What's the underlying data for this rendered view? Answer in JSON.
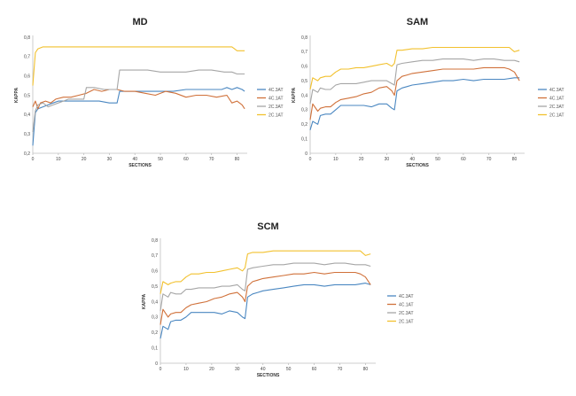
{
  "chart_data": [
    {
      "type": "line",
      "title": "MD",
      "xlabel": "SECTIONS",
      "ylabel": "KAPPA",
      "xlim": [
        0,
        84
      ],
      "ylim": [
        0.2,
        0.8
      ],
      "xticks": [
        0,
        10,
        20,
        30,
        40,
        50,
        60,
        70,
        80
      ],
      "yticks": [
        0.2,
        0.3,
        0.4,
        0.5,
        0.6,
        0.7,
        0.8
      ],
      "ytick_labels": [
        "0,2",
        "0,3",
        "0,4",
        "0,5",
        "0,6",
        "0,7",
        "0,8"
      ],
      "legend_position": "right",
      "series": [
        {
          "name": "4C.3AT",
          "color": "#4a87c1",
          "x": [
            0,
            1,
            2,
            4,
            6,
            8,
            10,
            14,
            18,
            22,
            26,
            30,
            33,
            34,
            36,
            40,
            45,
            50,
            55,
            60,
            65,
            70,
            74,
            76,
            78,
            80,
            82,
            83
          ],
          "y": [
            0.24,
            0.41,
            0.43,
            0.44,
            0.45,
            0.46,
            0.47,
            0.47,
            0.47,
            0.47,
            0.47,
            0.46,
            0.46,
            0.52,
            0.52,
            0.52,
            0.52,
            0.52,
            0.52,
            0.53,
            0.53,
            0.53,
            0.53,
            0.54,
            0.53,
            0.54,
            0.53,
            0.52
          ]
        },
        {
          "name": "4C.1AT",
          "color": "#d0713a",
          "x": [
            0,
            1,
            2,
            3,
            5,
            7,
            9,
            12,
            15,
            18,
            21,
            24,
            27,
            30,
            33,
            36,
            40,
            44,
            48,
            52,
            56,
            60,
            64,
            68,
            72,
            76,
            78,
            80,
            82,
            83
          ],
          "y": [
            0.44,
            0.47,
            0.43,
            0.46,
            0.47,
            0.46,
            0.48,
            0.49,
            0.49,
            0.5,
            0.51,
            0.53,
            0.52,
            0.53,
            0.53,
            0.52,
            0.52,
            0.51,
            0.5,
            0.52,
            0.51,
            0.49,
            0.5,
            0.5,
            0.49,
            0.5,
            0.46,
            0.47,
            0.45,
            0.43
          ]
        },
        {
          "name": "2C.3AT",
          "color": "#a6a6a6",
          "x": [
            0,
            1,
            2,
            4,
            6,
            8,
            10,
            12,
            14,
            16,
            18,
            20,
            21,
            24,
            28,
            30,
            33,
            34,
            36,
            40,
            45,
            50,
            55,
            60,
            65,
            70,
            75,
            78,
            80,
            83
          ],
          "y": [
            0.31,
            0.42,
            0.45,
            0.46,
            0.44,
            0.45,
            0.46,
            0.47,
            0.48,
            0.48,
            0.48,
            0.48,
            0.54,
            0.54,
            0.53,
            0.53,
            0.53,
            0.63,
            0.63,
            0.63,
            0.63,
            0.62,
            0.62,
            0.62,
            0.63,
            0.63,
            0.62,
            0.62,
            0.61,
            0.61
          ]
        },
        {
          "name": "2C.1AT",
          "color": "#f2c12e",
          "x": [
            0,
            1,
            2,
            4,
            8,
            12,
            16,
            20,
            24,
            28,
            32,
            36,
            40,
            44,
            48,
            52,
            56,
            60,
            64,
            68,
            72,
            76,
            78,
            79,
            80,
            82,
            83
          ],
          "y": [
            0.55,
            0.72,
            0.74,
            0.75,
            0.75,
            0.75,
            0.75,
            0.75,
            0.75,
            0.75,
            0.75,
            0.75,
            0.75,
            0.75,
            0.75,
            0.75,
            0.75,
            0.75,
            0.75,
            0.75,
            0.75,
            0.75,
            0.75,
            0.74,
            0.73,
            0.73,
            0.73
          ]
        }
      ]
    },
    {
      "type": "line",
      "title": "SAM",
      "xlabel": "SECTIONS",
      "ylabel": "KAPPA",
      "xlim": [
        0,
        84
      ],
      "ylim": [
        0,
        0.8
      ],
      "xticks": [
        0,
        10,
        20,
        30,
        40,
        50,
        60,
        70,
        80
      ],
      "yticks": [
        0,
        0.1,
        0.2,
        0.3,
        0.4,
        0.5,
        0.6,
        0.7,
        0.8
      ],
      "ytick_labels": [
        "0",
        "0,1",
        "0,2",
        "0,3",
        "0,4",
        "0,5",
        "0,6",
        "0,7",
        "0,8"
      ],
      "legend_position": "right",
      "series": [
        {
          "name": "4C.3AT",
          "color": "#4a87c1",
          "x": [
            0,
            1,
            3,
            4,
            6,
            8,
            10,
            12,
            15,
            18,
            21,
            24,
            27,
            30,
            32,
            33,
            34,
            36,
            38,
            40,
            44,
            48,
            52,
            56,
            60,
            64,
            68,
            72,
            76,
            80,
            82
          ],
          "y": [
            0.16,
            0.22,
            0.2,
            0.26,
            0.27,
            0.27,
            0.3,
            0.33,
            0.33,
            0.33,
            0.33,
            0.32,
            0.34,
            0.34,
            0.31,
            0.3,
            0.43,
            0.45,
            0.46,
            0.47,
            0.48,
            0.49,
            0.5,
            0.5,
            0.51,
            0.5,
            0.51,
            0.51,
            0.51,
            0.52,
            0.52
          ]
        },
        {
          "name": "4C.1AT",
          "color": "#d0713a",
          "x": [
            0,
            1,
            3,
            4,
            6,
            8,
            10,
            12,
            15,
            18,
            21,
            24,
            27,
            30,
            32,
            33,
            34,
            36,
            38,
            40,
            44,
            48,
            52,
            56,
            60,
            64,
            68,
            72,
            76,
            78,
            80,
            82
          ],
          "y": [
            0.23,
            0.34,
            0.29,
            0.31,
            0.32,
            0.32,
            0.35,
            0.37,
            0.38,
            0.39,
            0.41,
            0.42,
            0.45,
            0.46,
            0.43,
            0.4,
            0.5,
            0.53,
            0.54,
            0.55,
            0.56,
            0.57,
            0.58,
            0.58,
            0.58,
            0.58,
            0.59,
            0.59,
            0.59,
            0.58,
            0.56,
            0.5
          ]
        },
        {
          "name": "2C.3AT",
          "color": "#a6a6a6",
          "x": [
            0,
            1,
            3,
            4,
            6,
            8,
            10,
            12,
            15,
            18,
            21,
            24,
            27,
            30,
            32,
            33,
            34,
            36,
            40,
            44,
            48,
            52,
            56,
            60,
            64,
            68,
            72,
            76,
            80,
            82
          ],
          "y": [
            0.34,
            0.44,
            0.42,
            0.45,
            0.44,
            0.44,
            0.47,
            0.48,
            0.48,
            0.48,
            0.49,
            0.5,
            0.5,
            0.5,
            0.48,
            0.47,
            0.61,
            0.62,
            0.63,
            0.64,
            0.64,
            0.65,
            0.65,
            0.65,
            0.64,
            0.65,
            0.65,
            0.64,
            0.64,
            0.63
          ]
        },
        {
          "name": "2C.1AT",
          "color": "#f2c12e",
          "x": [
            0,
            1,
            3,
            4,
            6,
            8,
            10,
            12,
            15,
            18,
            21,
            24,
            27,
            30,
            32,
            33,
            34,
            36,
            40,
            44,
            48,
            52,
            56,
            60,
            64,
            68,
            72,
            76,
            78,
            80,
            82
          ],
          "y": [
            0.44,
            0.52,
            0.5,
            0.52,
            0.53,
            0.53,
            0.56,
            0.58,
            0.58,
            0.59,
            0.59,
            0.6,
            0.61,
            0.62,
            0.6,
            0.62,
            0.71,
            0.71,
            0.72,
            0.72,
            0.73,
            0.73,
            0.73,
            0.73,
            0.73,
            0.73,
            0.73,
            0.73,
            0.73,
            0.7,
            0.71
          ]
        }
      ]
    },
    {
      "type": "line",
      "title": "SCM",
      "xlabel": "SECTIONS",
      "ylabel": "KAPPA",
      "xlim": [
        0,
        84
      ],
      "ylim": [
        0,
        0.8
      ],
      "xticks": [
        0,
        10,
        20,
        30,
        40,
        50,
        60,
        70,
        80
      ],
      "yticks": [
        0,
        0.1,
        0.2,
        0.3,
        0.4,
        0.5,
        0.6,
        0.7,
        0.8
      ],
      "ytick_labels": [
        "0",
        "0,1",
        "0,2",
        "0,3",
        "0,4",
        "0,5",
        "0,6",
        "0,7",
        "0,8"
      ],
      "legend_position": "right",
      "series": [
        {
          "name": "4C.3AT",
          "color": "#4a87c1",
          "x": [
            0,
            1,
            3,
            4,
            6,
            8,
            10,
            12,
            15,
            18,
            21,
            24,
            27,
            30,
            32,
            33,
            34,
            36,
            38,
            40,
            44,
            48,
            52,
            56,
            60,
            64,
            68,
            72,
            76,
            80,
            82
          ],
          "y": [
            0.16,
            0.24,
            0.22,
            0.27,
            0.28,
            0.28,
            0.3,
            0.33,
            0.33,
            0.33,
            0.33,
            0.32,
            0.34,
            0.33,
            0.3,
            0.29,
            0.43,
            0.45,
            0.46,
            0.47,
            0.48,
            0.49,
            0.5,
            0.51,
            0.51,
            0.5,
            0.51,
            0.51,
            0.51,
            0.52,
            0.51
          ]
        },
        {
          "name": "4C.1AT",
          "color": "#d0713a",
          "x": [
            0,
            1,
            3,
            4,
            6,
            8,
            10,
            12,
            15,
            18,
            21,
            24,
            27,
            30,
            32,
            33,
            34,
            36,
            38,
            40,
            44,
            48,
            52,
            56,
            60,
            64,
            68,
            72,
            76,
            78,
            80,
            82
          ],
          "y": [
            0.25,
            0.35,
            0.3,
            0.32,
            0.33,
            0.33,
            0.36,
            0.38,
            0.39,
            0.4,
            0.42,
            0.43,
            0.45,
            0.46,
            0.43,
            0.4,
            0.5,
            0.53,
            0.54,
            0.55,
            0.56,
            0.57,
            0.58,
            0.58,
            0.59,
            0.58,
            0.59,
            0.59,
            0.59,
            0.58,
            0.56,
            0.51
          ]
        },
        {
          "name": "2C.3AT",
          "color": "#a6a6a6",
          "x": [
            0,
            1,
            3,
            4,
            6,
            8,
            10,
            12,
            15,
            18,
            21,
            24,
            27,
            30,
            32,
            33,
            34,
            36,
            40,
            44,
            48,
            52,
            56,
            60,
            64,
            68,
            72,
            76,
            80,
            82
          ],
          "y": [
            0.34,
            0.45,
            0.43,
            0.46,
            0.45,
            0.45,
            0.48,
            0.48,
            0.49,
            0.49,
            0.49,
            0.5,
            0.5,
            0.51,
            0.48,
            0.47,
            0.61,
            0.62,
            0.63,
            0.64,
            0.64,
            0.65,
            0.65,
            0.65,
            0.64,
            0.65,
            0.65,
            0.64,
            0.64,
            0.63
          ]
        },
        {
          "name": "2C.1AT",
          "color": "#f2c12e",
          "x": [
            0,
            1,
            3,
            4,
            6,
            8,
            10,
            12,
            15,
            18,
            21,
            24,
            27,
            30,
            32,
            33,
            34,
            36,
            40,
            44,
            48,
            52,
            56,
            60,
            64,
            68,
            72,
            76,
            78,
            80,
            82
          ],
          "y": [
            0.45,
            0.53,
            0.51,
            0.52,
            0.53,
            0.53,
            0.56,
            0.58,
            0.58,
            0.59,
            0.59,
            0.6,
            0.61,
            0.62,
            0.6,
            0.62,
            0.71,
            0.72,
            0.72,
            0.73,
            0.73,
            0.73,
            0.73,
            0.73,
            0.73,
            0.73,
            0.73,
            0.73,
            0.73,
            0.7,
            0.71
          ]
        }
      ]
    }
  ]
}
